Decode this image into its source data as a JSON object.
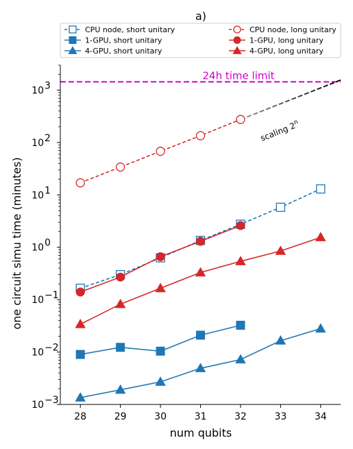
{
  "chart_data": {
    "type": "line",
    "title": "a)",
    "xlabel": "num qubits",
    "ylabel": "one circuit simu time (minutes)",
    "yscale": "log",
    "xlim": [
      27.5,
      34.5
    ],
    "ylim": [
      0.001,
      3000
    ],
    "x_ticks": [
      "28",
      "29",
      "30",
      "31",
      "32",
      "33",
      "34"
    ],
    "y_ticks": [
      {
        "value": 0.001,
        "base": "10",
        "exp": "−3"
      },
      {
        "value": 0.01,
        "base": "10",
        "exp": "−2"
      },
      {
        "value": 0.1,
        "base": "10",
        "exp": "−1"
      },
      {
        "value": 1,
        "base": "10",
        "exp": "0"
      },
      {
        "value": 10,
        "base": "10",
        "exp": "1"
      },
      {
        "value": 100,
        "base": "10",
        "exp": "2"
      },
      {
        "value": 1000,
        "base": "10",
        "exp": "3"
      }
    ],
    "legend_position": "top, two columns",
    "series": [
      {
        "name": "CPU node, short unitary",
        "color": "#1f77b4",
        "marker": "square",
        "filled": false,
        "dashed": true,
        "x": [
          28,
          29,
          30,
          31,
          32,
          33,
          34
        ],
        "y": [
          0.165,
          0.3,
          0.63,
          1.35,
          2.75,
          5.8,
          13
        ]
      },
      {
        "name": "1-GPU, short unitary",
        "color": "#1f77b4",
        "marker": "square",
        "filled": true,
        "dashed": false,
        "x": [
          28,
          29,
          30,
          31,
          32
        ],
        "y": [
          0.009,
          0.0123,
          0.0104,
          0.021,
          0.0325
        ]
      },
      {
        "name": "4-GPU, short unitary",
        "color": "#1f77b4",
        "marker": "triangle",
        "filled": true,
        "dashed": false,
        "x": [
          28,
          29,
          30,
          31,
          32,
          33,
          34
        ],
        "y": [
          0.00135,
          0.0019,
          0.0027,
          0.0049,
          0.0072,
          0.0165,
          0.028
        ]
      },
      {
        "name": "CPU node, long unitary",
        "color": "#d62728",
        "marker": "circle",
        "filled": false,
        "dashed": true,
        "x": [
          28,
          29,
          30,
          31,
          32
        ],
        "y": [
          17,
          34,
          68,
          135,
          275
        ]
      },
      {
        "name": "1-GPU, long unitary",
        "color": "#d62728",
        "marker": "circle",
        "filled": true,
        "dashed": false,
        "x": [
          28,
          29,
          30,
          31,
          32
        ],
        "y": [
          0.14,
          0.27,
          0.66,
          1.3,
          2.6
        ]
      },
      {
        "name": "4-GPU, long unitary",
        "color": "#d62728",
        "marker": "triangle",
        "filled": true,
        "dashed": false,
        "x": [
          28,
          29,
          30,
          31,
          32,
          33,
          34
        ],
        "y": [
          0.034,
          0.082,
          0.165,
          0.33,
          0.54,
          0.85,
          1.55
        ]
      }
    ],
    "reference_lines": [
      {
        "label": "24h time limit",
        "value": 1440,
        "color": "#cc00cc",
        "style": "dashed"
      }
    ],
    "extrapolation": {
      "label_base": "scaling 2",
      "label_exp": "n",
      "color": "#000000",
      "style": "dashed",
      "x": [
        32,
        34.5
      ],
      "y": [
        275,
        1556
      ]
    }
  }
}
